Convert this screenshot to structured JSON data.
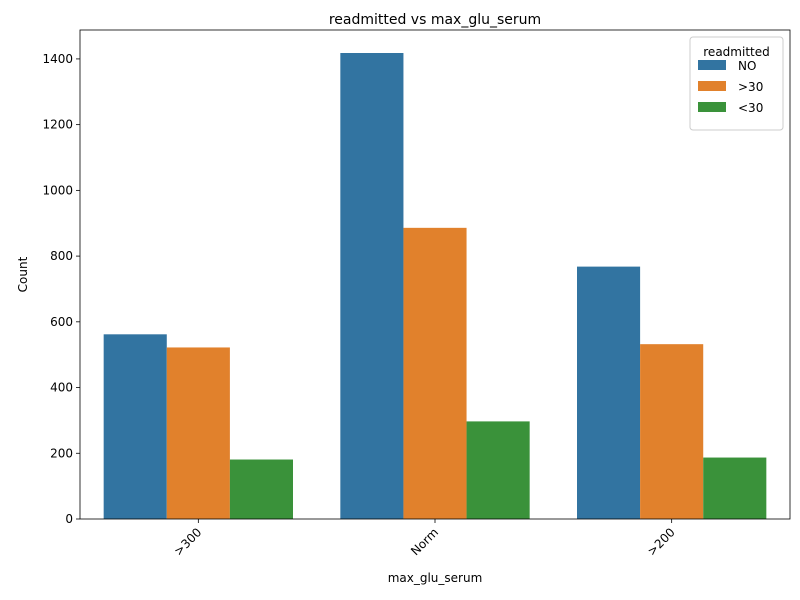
{
  "chart_data": {
    "type": "bar",
    "title": "readmitted vs max_glu_serum",
    "xlabel": "max_glu_serum",
    "ylabel": "Count",
    "categories": [
      ">300",
      "Norm",
      ">200"
    ],
    "series": [
      {
        "name": "NO",
        "values": [
          562,
          1418,
          768
        ],
        "color": "#3274a1"
      },
      {
        "name": ">30",
        "values": [
          522,
          886,
          532
        ],
        "color": "#e1812c"
      },
      {
        "name": "<30",
        "values": [
          181,
          297,
          187
        ],
        "color": "#3a923a"
      }
    ],
    "ylim": [
      0,
      1488
    ],
    "yticks": [
      0,
      200,
      400,
      600,
      800,
      1000,
      1200,
      1400
    ],
    "xtick_rotation": 45,
    "grid": false,
    "legend": {
      "title": "readmitted",
      "position": "top-right"
    }
  }
}
